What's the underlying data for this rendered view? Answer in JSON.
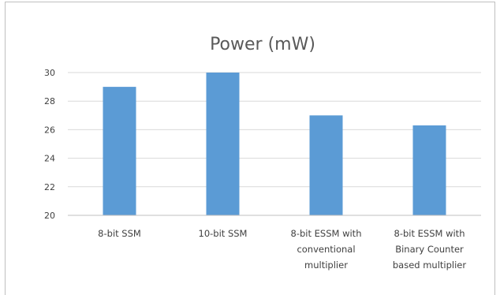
{
  "chart_data": {
    "type": "bar",
    "title": "Power (mW)",
    "xlabel": "",
    "ylabel": "",
    "categories": [
      "8-bit SSM",
      "10-bit SSM",
      "8-bit ESSM with conventional multiplier",
      "8-bit ESSM with Binary Counter based multiplier"
    ],
    "category_lines": [
      [
        "8-bit SSM"
      ],
      [
        "10-bit SSM"
      ],
      [
        "8-bit ESSM with",
        "conventional",
        "multiplier"
      ],
      [
        "8-bit ESSM with",
        "Binary Counter",
        "based multiplier"
      ]
    ],
    "values": [
      29,
      30,
      27,
      26.3
    ],
    "ylim": [
      20,
      30
    ],
    "yticks": [
      20,
      22,
      24,
      26,
      28,
      30
    ],
    "grid": true,
    "legend": "none",
    "colors": {
      "bar": "#5b9bd5",
      "grid": "#d9d9d9",
      "axis": "#bfbfbf"
    }
  }
}
